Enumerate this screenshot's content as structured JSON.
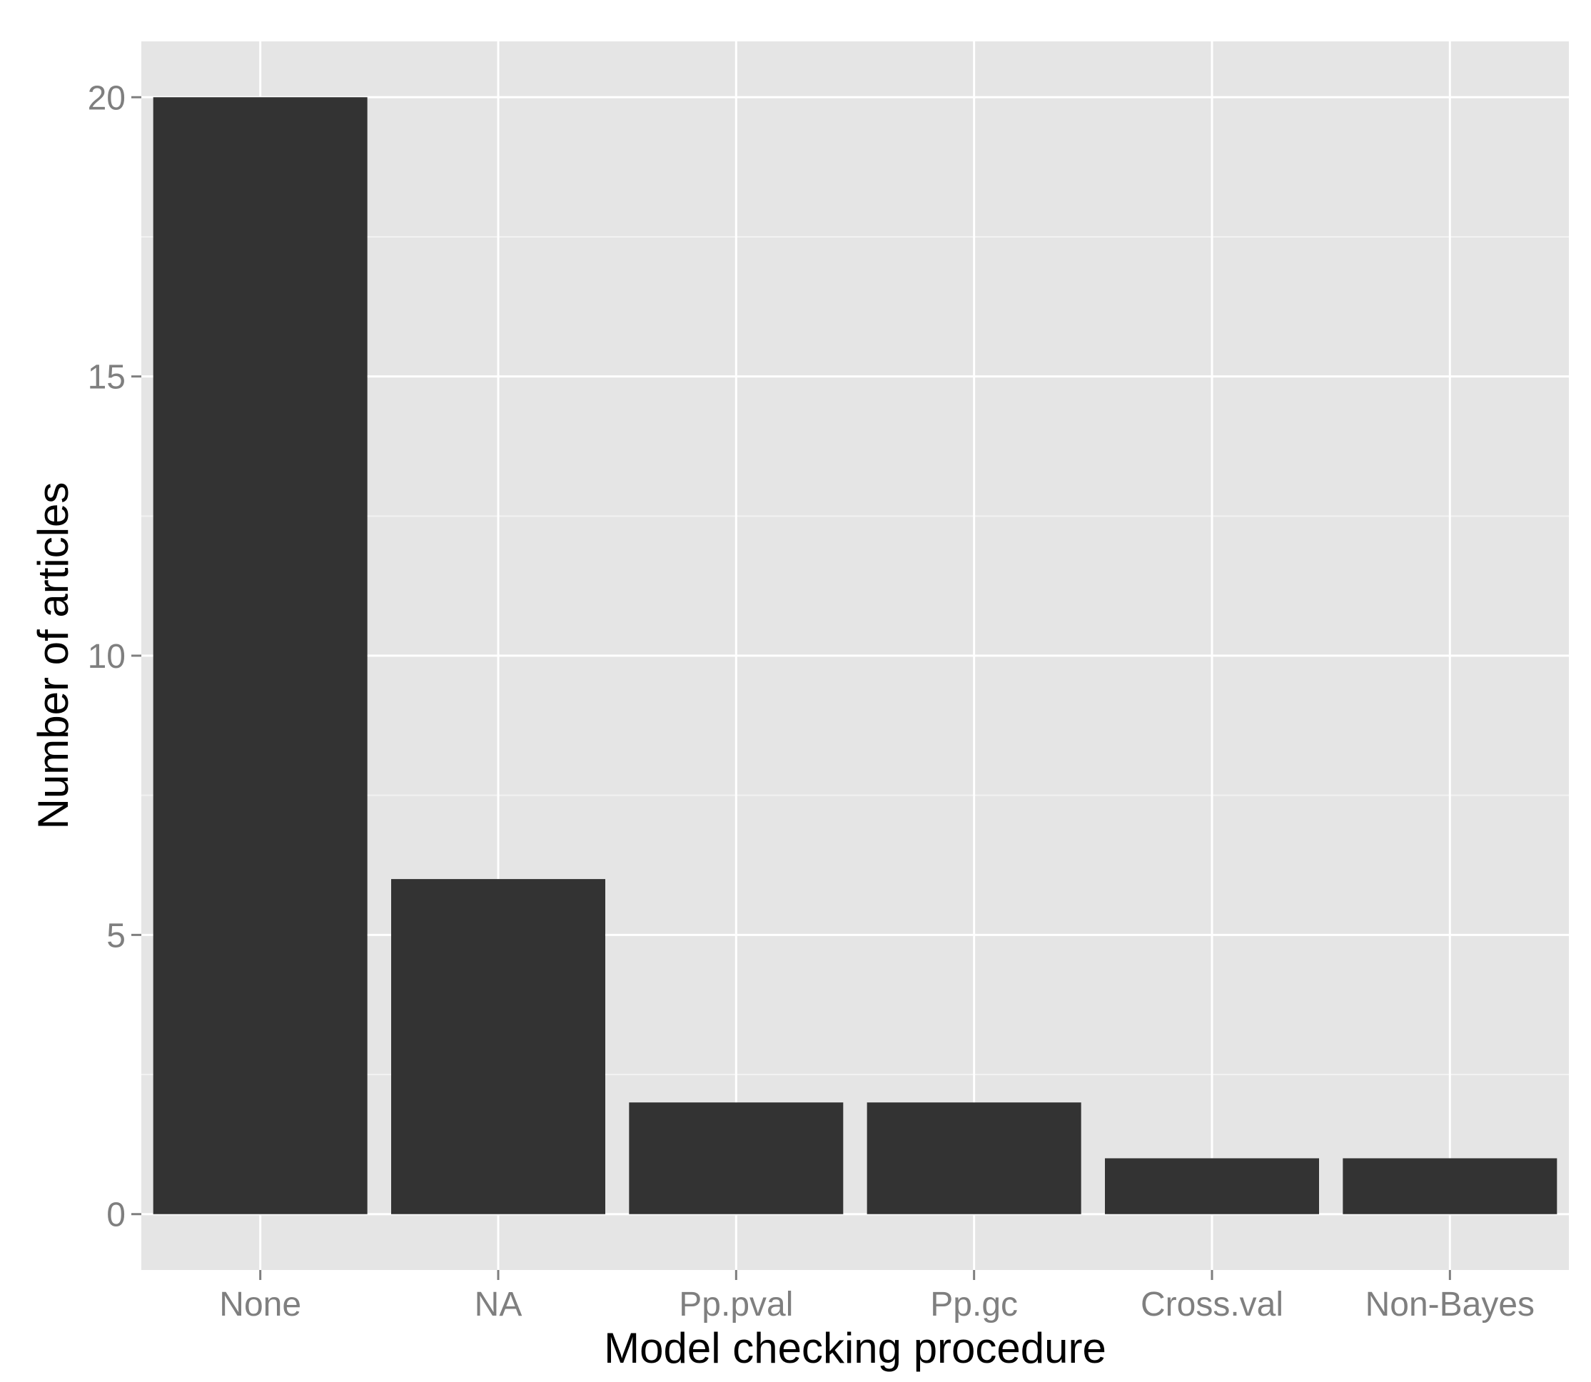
{
  "chart_data": {
    "type": "bar",
    "title": "",
    "xlabel": "Model checking procedure",
    "ylabel": "Number of articles",
    "categories": [
      "None",
      "NA",
      "Pp.pval",
      "Pp.gc",
      "Cross.val",
      "Non-Bayes"
    ],
    "values": [
      20,
      6,
      2,
      2,
      1,
      1
    ],
    "ylim": [
      -1,
      21
    ],
    "yticks": [
      0,
      5,
      10,
      15,
      20
    ],
    "ytick_labels": [
      "0",
      "5",
      "10",
      "15",
      "20"
    ],
    "grid": true,
    "legend": "none",
    "colors": {
      "bar": "#333333",
      "panel": "#e5e5e5",
      "grid_major": "#ffffff",
      "grid_minor": "#f2f2f2",
      "tick_label": "#7f7f7f",
      "tick_mark": "#7f7f7f",
      "axis_title": "#000000"
    }
  }
}
